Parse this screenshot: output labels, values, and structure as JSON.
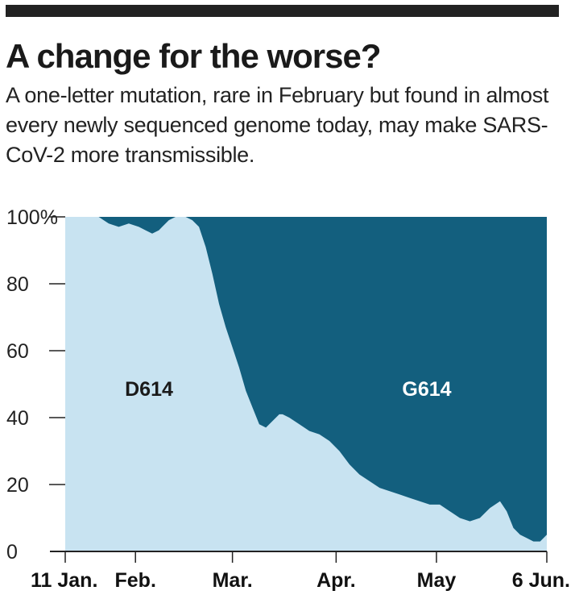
{
  "header": {
    "title": "A change for the worse?",
    "subtitle": "A one-letter mutation, rare in February but found in almost every newly sequenced genome today, may make SARS-CoV-2 more transmissible."
  },
  "chart_data": {
    "type": "area",
    "stacked": true,
    "percent": true,
    "x_ticks": [
      "11 Jan.",
      "Feb.",
      "Mar.",
      "Apr.",
      "May",
      "6 Jun."
    ],
    "y_ticks": [
      "100%",
      "80",
      "60",
      "40",
      "20",
      "0"
    ],
    "ylim": [
      0,
      100
    ],
    "series": [
      {
        "name": "D614",
        "color": "#c8e3f1",
        "label_color": "#1a1a1a"
      },
      {
        "name": "G614",
        "color": "#135f7e",
        "label_color": "#ffffff"
      }
    ],
    "x_days": [
      0,
      10,
      13,
      16,
      19,
      22,
      24,
      26,
      28,
      29,
      31,
      33,
      35,
      36,
      38,
      40,
      42,
      44,
      46,
      48,
      50,
      52,
      54,
      56,
      58,
      60,
      62,
      64,
      65,
      67,
      70,
      73,
      76,
      79,
      82,
      85,
      88,
      91,
      94,
      97,
      100,
      103,
      106,
      109,
      112,
      115,
      118,
      121,
      124,
      127,
      130,
      132,
      134,
      136,
      138,
      140,
      142,
      144
    ],
    "d614_percent": [
      100,
      100,
      98,
      97,
      98,
      97,
      96,
      95,
      96,
      97,
      99,
      100,
      100,
      100,
      99,
      97,
      91,
      83,
      74,
      67,
      61,
      55,
      48,
      43,
      38,
      37,
      39,
      41,
      41,
      40,
      38,
      36,
      35,
      33,
      30,
      26,
      23,
      21,
      19,
      18,
      17,
      16,
      15,
      14,
      14,
      12,
      10,
      9,
      10,
      13,
      15,
      12,
      7,
      5,
      4,
      3,
      3,
      5
    ]
  }
}
